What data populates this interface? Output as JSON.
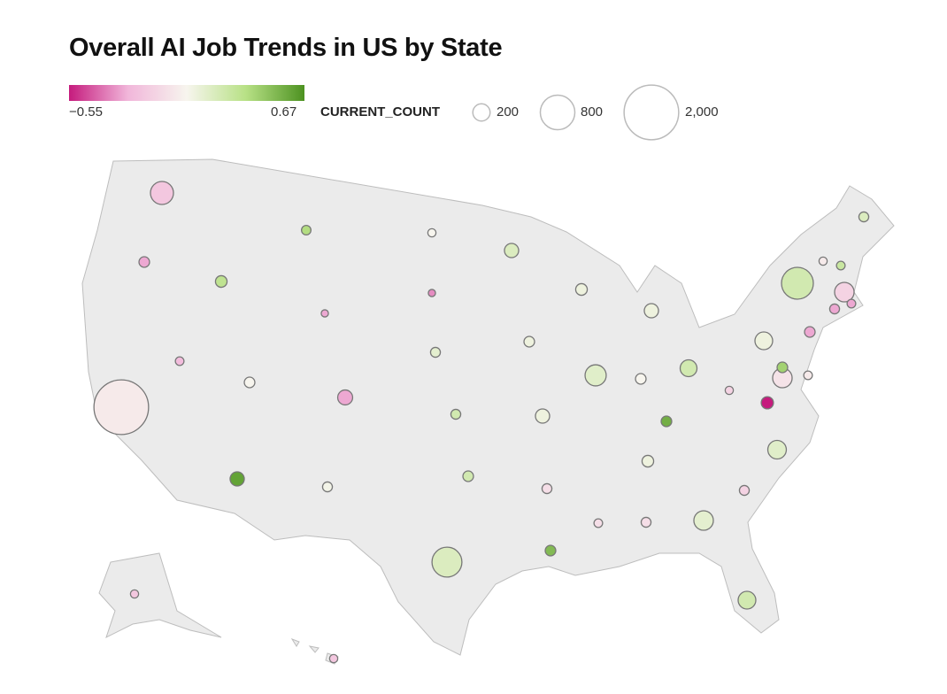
{
  "title": "Overall AI Job Trends in US by State",
  "color_legend": {
    "min_label": "−0.55",
    "max_label": "0.67",
    "min": -0.55,
    "max": 0.67,
    "colors": [
      "#c51b7d",
      "#f1b6da",
      "#f7f5ee",
      "#b8e186",
      "#4d9221"
    ]
  },
  "size_legend": {
    "title": "CURRENT_COUNT",
    "items": [
      {
        "value": 200,
        "label": "200"
      },
      {
        "value": 800,
        "label": "800"
      },
      {
        "value": 2000,
        "label": "2,000"
      }
    ]
  },
  "chart_data": {
    "type": "proportional-symbol-map",
    "title": "Overall AI Job Trends in US by State",
    "size_field": "CURRENT_COUNT",
    "color_range": [
      -0.55,
      0.67
    ],
    "states": [
      {
        "state": "WA",
        "count": 355,
        "trend": -0.2
      },
      {
        "state": "OR",
        "count": 75,
        "trend": -0.3
      },
      {
        "state": "CA",
        "count": 2000,
        "trend": -0.05
      },
      {
        "state": "NV",
        "count": 50,
        "trend": -0.25
      },
      {
        "state": "ID",
        "count": 90,
        "trend": 0.3
      },
      {
        "state": "MT",
        "count": 60,
        "trend": 0.35
      },
      {
        "state": "WY",
        "count": 35,
        "trend": -0.3
      },
      {
        "state": "UT",
        "count": 75,
        "trend": 0.0
      },
      {
        "state": "CO",
        "count": 150,
        "trend": -0.3
      },
      {
        "state": "AZ",
        "count": 135,
        "trend": 0.6
      },
      {
        "state": "NM",
        "count": 65,
        "trend": 0.02
      },
      {
        "state": "ND",
        "count": 45,
        "trend": 0.0
      },
      {
        "state": "SD",
        "count": 35,
        "trend": -0.35
      },
      {
        "state": "NE",
        "count": 65,
        "trend": 0.1
      },
      {
        "state": "KS",
        "count": 65,
        "trend": 0.2
      },
      {
        "state": "OK",
        "count": 75,
        "trend": 0.2
      },
      {
        "state": "TX",
        "count": 600,
        "trend": 0.15
      },
      {
        "state": "MN",
        "count": 135,
        "trend": 0.15
      },
      {
        "state": "IA",
        "count": 75,
        "trend": 0.05
      },
      {
        "state": "MO",
        "count": 135,
        "trend": 0.05
      },
      {
        "state": "AR",
        "count": 65,
        "trend": -0.1
      },
      {
        "state": "LA",
        "count": 75,
        "trend": 0.5
      },
      {
        "state": "WI",
        "count": 90,
        "trend": 0.05
      },
      {
        "state": "IL",
        "count": 300,
        "trend": 0.12
      },
      {
        "state": "MI",
        "count": 135,
        "trend": 0.05
      },
      {
        "state": "IN",
        "count": 75,
        "trend": 0.0
      },
      {
        "state": "OH",
        "count": 190,
        "trend": 0.2
      },
      {
        "state": "KY",
        "count": 75,
        "trend": 0.55
      },
      {
        "state": "TN",
        "count": 90,
        "trend": 0.05
      },
      {
        "state": "MS",
        "count": 50,
        "trend": -0.1
      },
      {
        "state": "AL",
        "count": 65,
        "trend": -0.1
      },
      {
        "state": "GA",
        "count": 255,
        "trend": 0.1
      },
      {
        "state": "FL",
        "count": 210,
        "trend": 0.2
      },
      {
        "state": "SC",
        "count": 65,
        "trend": -0.15
      },
      {
        "state": "NC",
        "count": 230,
        "trend": 0.12
      },
      {
        "state": "VA",
        "count": 100,
        "trend": -0.55
      },
      {
        "state": "WV",
        "count": 45,
        "trend": -0.15
      },
      {
        "state": "PA",
        "count": 210,
        "trend": 0.05
      },
      {
        "state": "NY",
        "count": 680,
        "trend": 0.2
      },
      {
        "state": "VT",
        "count": 45,
        "trend": -0.05
      },
      {
        "state": "NH",
        "count": 50,
        "trend": 0.25
      },
      {
        "state": "ME",
        "count": 65,
        "trend": 0.15
      },
      {
        "state": "MA",
        "count": 255,
        "trend": -0.15
      },
      {
        "state": "CT",
        "count": 65,
        "trend": -0.3
      },
      {
        "state": "RI",
        "count": 50,
        "trend": -0.3
      },
      {
        "state": "NJ",
        "count": 75,
        "trend": -0.3
      },
      {
        "state": "MD",
        "count": 255,
        "trend": -0.08
      },
      {
        "state": "DE",
        "count": 75,
        "trend": 0.4
      },
      {
        "state": "DC",
        "count": 50,
        "trend": -0.05
      },
      {
        "state": "AK",
        "count": 45,
        "trend": -0.2
      },
      {
        "state": "HI",
        "count": 45,
        "trend": -0.2
      }
    ]
  }
}
